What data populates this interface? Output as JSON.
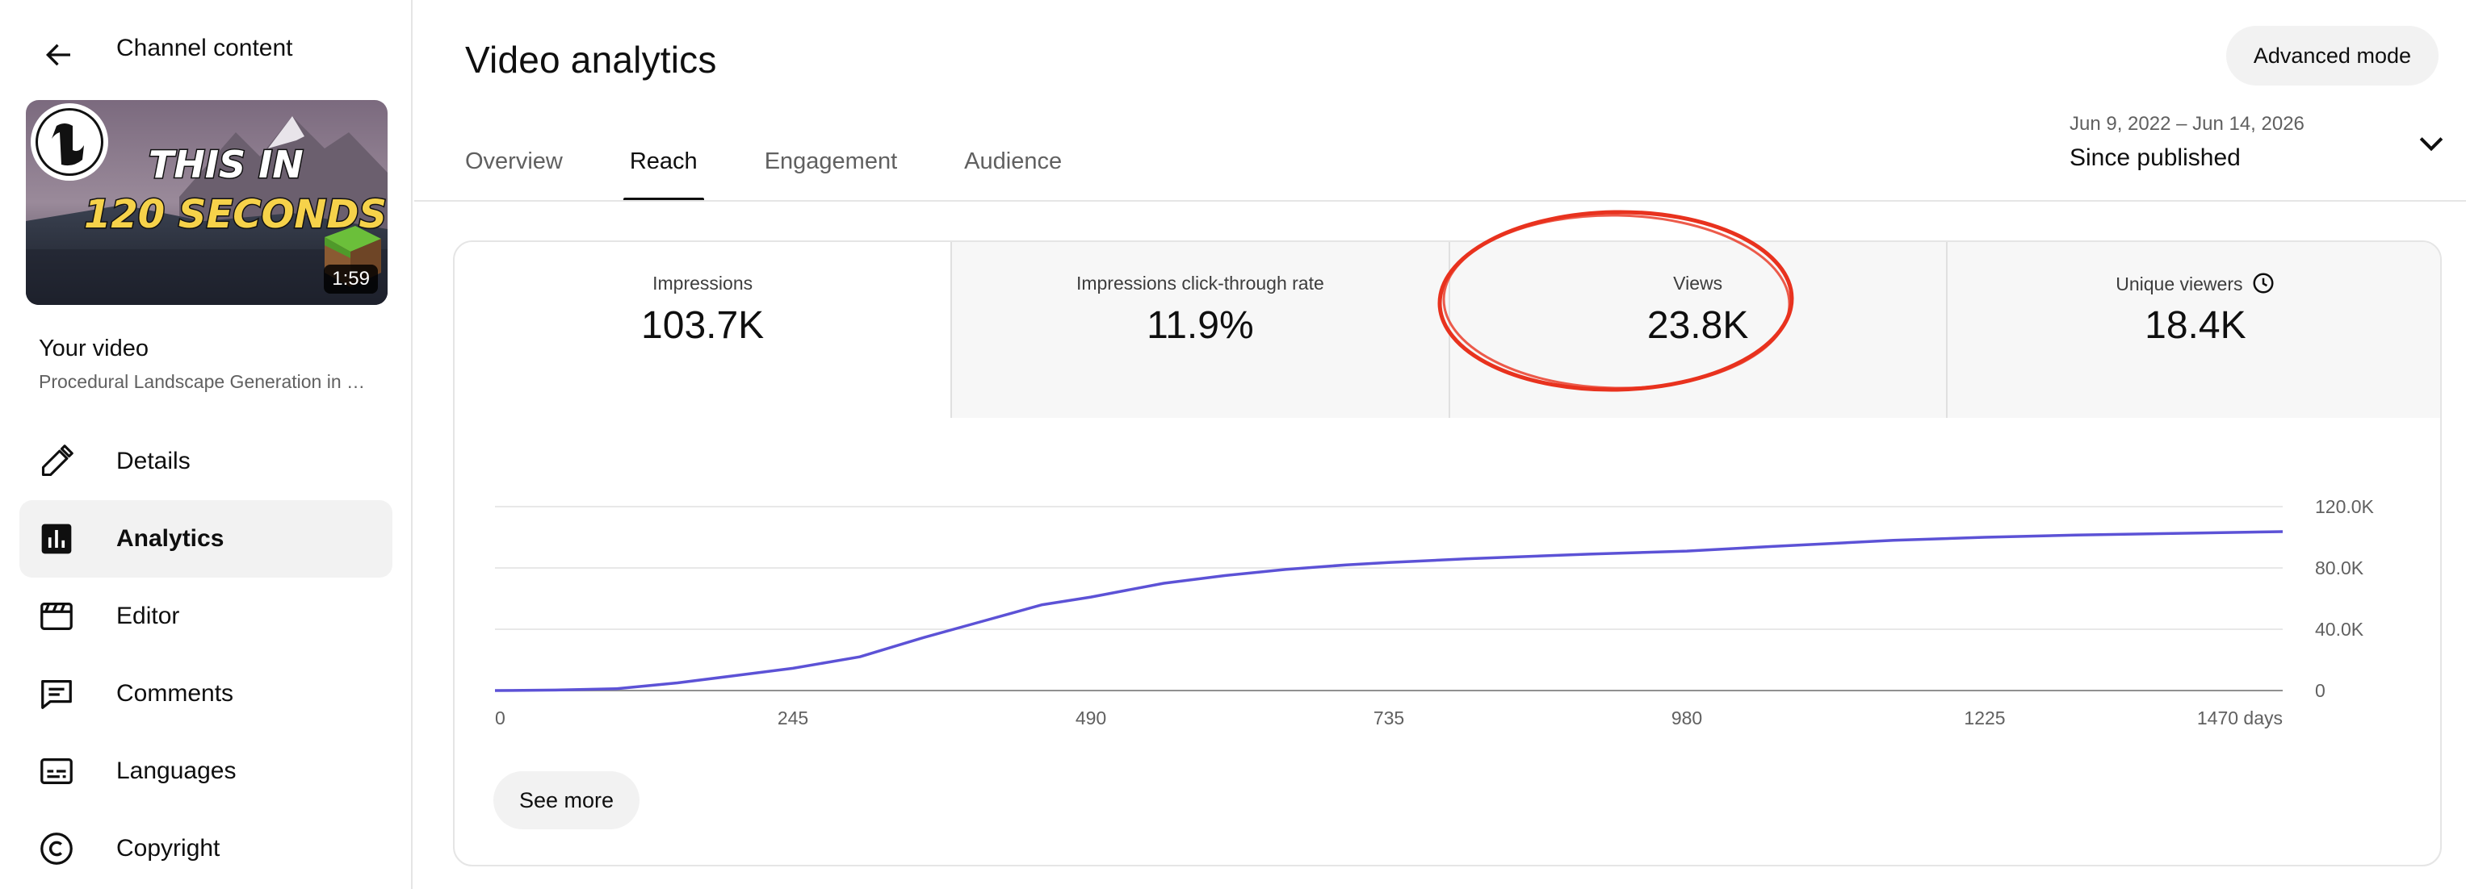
{
  "sidebar": {
    "back_icon": "arrow-back-icon",
    "title": "Channel content",
    "thumbnail": {
      "headline_line1": "THIS IN",
      "headline_line2": "120 SECONDS",
      "duration": "1:59",
      "logo": "Unreal Engine logo"
    },
    "your_video_label": "Your video",
    "video_name": "Procedural Landscape Generation in Unreal Engine",
    "nav": [
      {
        "label": "Details",
        "icon": "pencil-icon",
        "active": false
      },
      {
        "label": "Analytics",
        "icon": "analytics-icon",
        "active": true
      },
      {
        "label": "Editor",
        "icon": "clapperboard-icon",
        "active": false
      },
      {
        "label": "Comments",
        "icon": "comment-icon",
        "active": false
      },
      {
        "label": "Languages",
        "icon": "subtitles-icon",
        "active": false
      },
      {
        "label": "Copyright",
        "icon": "copyright-icon",
        "active": false
      }
    ]
  },
  "header": {
    "title": "Video analytics",
    "advanced_mode": "Advanced mode",
    "tabs": [
      "Overview",
      "Reach",
      "Engagement",
      "Audience"
    ],
    "active_tab": "Reach",
    "date_range": "Jun 9, 2022 – Jun 14, 2026",
    "date_label": "Since published"
  },
  "metrics": [
    {
      "label": "Impressions",
      "value": "103.7K",
      "selected": true
    },
    {
      "label": "Impressions click-through rate",
      "value": "11.9%",
      "selected": false,
      "annotated": true
    },
    {
      "label": "Views",
      "value": "23.8K",
      "selected": false
    },
    {
      "label": "Unique viewers",
      "value": "18.4K",
      "selected": false,
      "icon": "clock-icon"
    }
  ],
  "chart_data": {
    "type": "line",
    "series": [
      {
        "color": "#5c52d6",
        "x": [
          0,
          50,
          100,
          150,
          200,
          245,
          300,
          350,
          400,
          450,
          490,
          550,
          600,
          650,
          700,
          735,
          800,
          900,
          980,
          1050,
          1100,
          1150,
          1225,
          1300,
          1400,
          1470
        ],
        "y": [
          0,
          300,
          1200,
          5000,
          10000,
          14500,
          22000,
          34000,
          45000,
          56000,
          61000,
          70000,
          75000,
          79000,
          82000,
          83500,
          86000,
          89000,
          91000,
          94000,
          96000,
          98000,
          100000,
          101500,
          102800,
          103700
        ]
      }
    ],
    "x_ticks": [
      "0",
      "245",
      "490",
      "735",
      "980",
      "1225",
      "1470 days"
    ],
    "x_tick_values": [
      0,
      245,
      490,
      735,
      980,
      1225,
      1470
    ],
    "y_ticks": [
      "0",
      "40.0K",
      "80.0K",
      "120.0K"
    ],
    "y_tick_values": [
      0,
      40000,
      80000,
      120000
    ],
    "xlim": [
      0,
      1470
    ],
    "ylim": [
      0,
      120000
    ],
    "grid": true,
    "y_axis_side": "right"
  },
  "see_more": "See more",
  "colors": {
    "line": "#5c52d6",
    "annotation": "#e8321e",
    "active_nav_bg": "#f2f2f2",
    "metric_bg": "#f7f7f7"
  }
}
